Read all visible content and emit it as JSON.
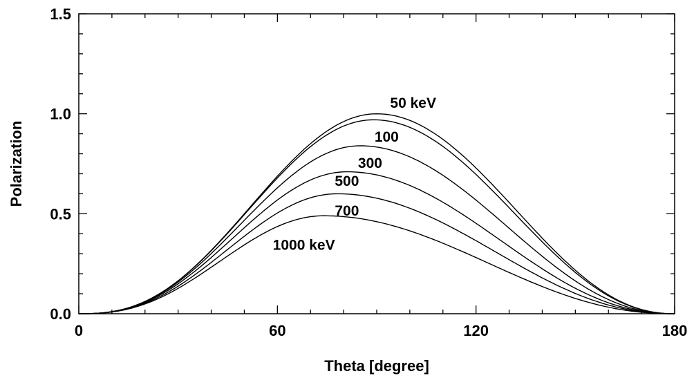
{
  "chart_data": {
    "type": "line",
    "title": "",
    "xlabel": "Theta [degree]",
    "ylabel": "Polarization",
    "xlim": [
      0,
      180
    ],
    "ylim": [
      0.0,
      1.5
    ],
    "x_ticks": [
      0,
      60,
      120,
      180
    ],
    "x_tick_labels": [
      "0",
      "60",
      "120",
      "180"
    ],
    "x_minor_step": 10,
    "y_ticks": [
      0.0,
      0.5,
      1.0,
      1.5
    ],
    "y_tick_labels": [
      "0.0",
      "0.5",
      "1.0",
      "1.5"
    ],
    "y_minor_step": 0.1,
    "grid": false,
    "legend": "none",
    "series": [
      {
        "energy_keV": 50,
        "label": "50 keV",
        "peak_x": 90,
        "peak_y": 1.0,
        "label_at": [
          101,
          1.03
        ]
      },
      {
        "energy_keV": 100,
        "label": "100",
        "peak_x": 89,
        "peak_y": 0.97,
        "label_at": [
          93,
          0.86
        ]
      },
      {
        "energy_keV": 300,
        "label": "300",
        "peak_x": 85,
        "peak_y": 0.84,
        "label_at": [
          88,
          0.73
        ]
      },
      {
        "energy_keV": 500,
        "label": "500",
        "peak_x": 81,
        "peak_y": 0.71,
        "label_at": [
          81,
          0.64
        ]
      },
      {
        "energy_keV": 700,
        "label": "700",
        "peak_x": 78,
        "peak_y": 0.6,
        "label_at": [
          81,
          0.49
        ]
      },
      {
        "energy_keV": 1000,
        "label": "1000 keV",
        "peak_x": 74,
        "peak_y": 0.49,
        "label_at": [
          68,
          0.32
        ]
      }
    ]
  }
}
